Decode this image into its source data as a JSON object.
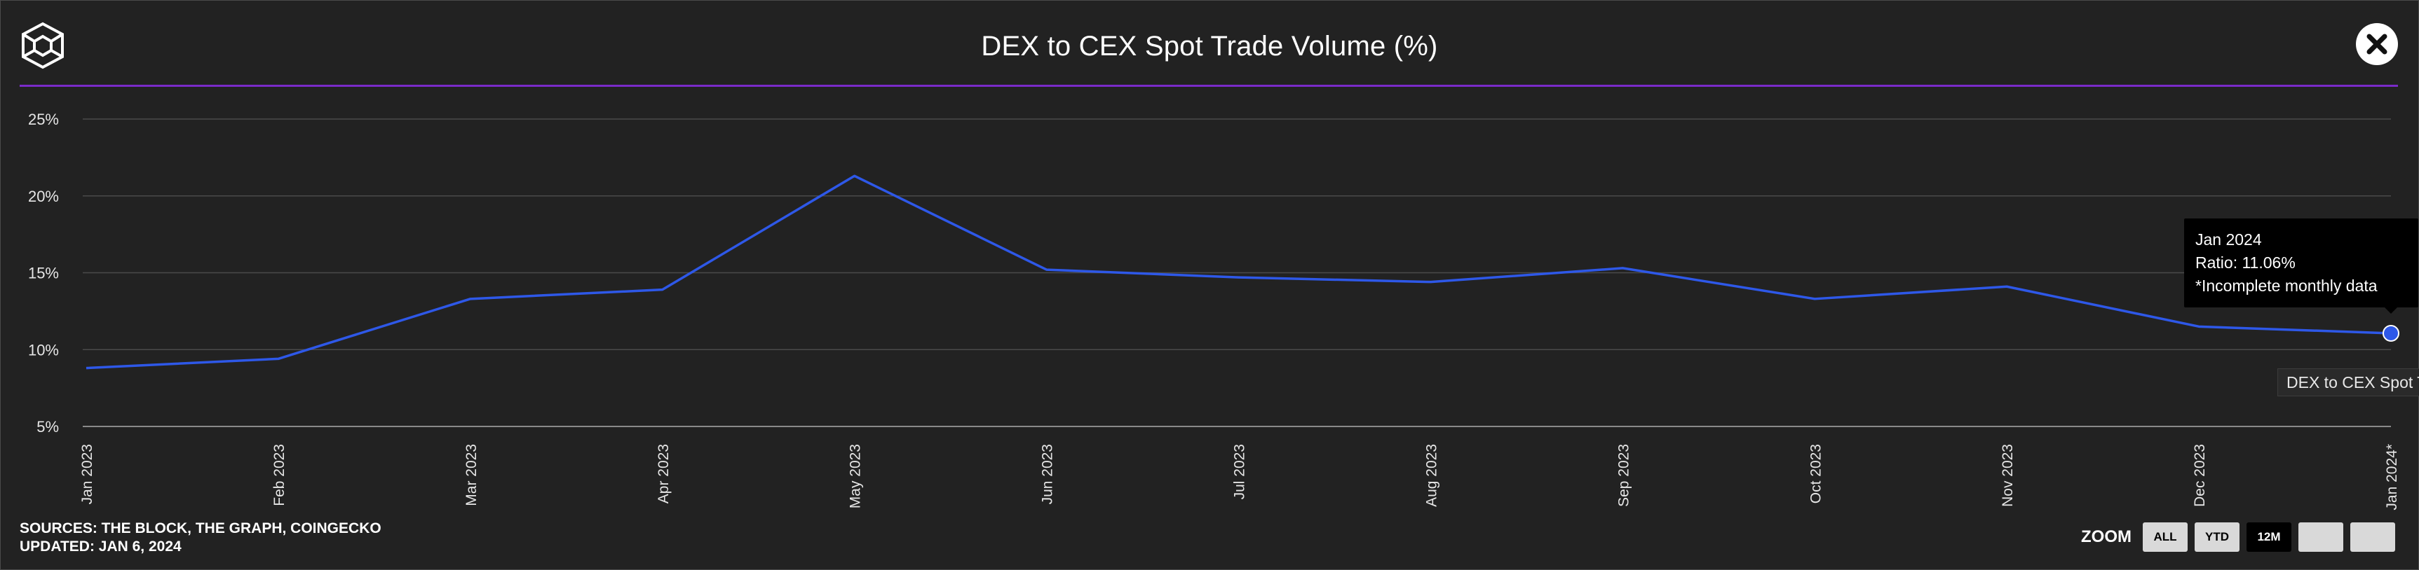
{
  "header": {
    "title": "DEX to CEX Spot Trade Volume (%)"
  },
  "icons": {
    "logo": "the-block-cube-logo-icon",
    "close": "close-icon"
  },
  "colors": {
    "background": "#222222",
    "line": "#2e58e8",
    "accent": "#7a2bc9",
    "grid": "#4a4a4a"
  },
  "chart_data": {
    "type": "line",
    "title": "DEX to CEX Spot Trade Volume (%)",
    "categories": [
      "Jan 2023",
      "Feb 2023",
      "Mar 2023",
      "Apr 2023",
      "May 2023",
      "Jun 2023",
      "Jul 2023",
      "Aug 2023",
      "Sep 2023",
      "Oct 2023",
      "Nov 2023",
      "Dec 2023",
      "Jan 2024*"
    ],
    "series": [
      {
        "name": "DEX to CEX Spot T",
        "values": [
          8.8,
          9.4,
          13.3,
          13.9,
          21.3,
          15.2,
          14.7,
          14.4,
          15.3,
          13.3,
          14.1,
          11.5,
          11.06
        ]
      }
    ],
    "ylim": [
      5,
      25
    ],
    "yticks": [
      5,
      10,
      15,
      20,
      25
    ],
    "ytick_labels": [
      "5%",
      "10%",
      "15%",
      "20%",
      "25%"
    ],
    "grid": true,
    "legend_placement": "right",
    "highlight_index": 12
  },
  "tooltip": {
    "date": "Jan 2024",
    "ratio": "Ratio: 11.06%",
    "note": "*Incomplete monthly data"
  },
  "legend": {
    "label": "DEX to CEX Spot T"
  },
  "footer": {
    "sources": "SOURCES: THE BLOCK, THE GRAPH, COINGECKO",
    "updated": "UPDATED: JAN 6, 2024"
  },
  "zoom": {
    "label": "ZOOM",
    "buttons": [
      {
        "label": "ALL",
        "active": false
      },
      {
        "label": "YTD",
        "active": false
      },
      {
        "label": "12M",
        "active": true
      },
      {
        "label": "",
        "active": false
      },
      {
        "label": "",
        "active": false
      }
    ]
  }
}
